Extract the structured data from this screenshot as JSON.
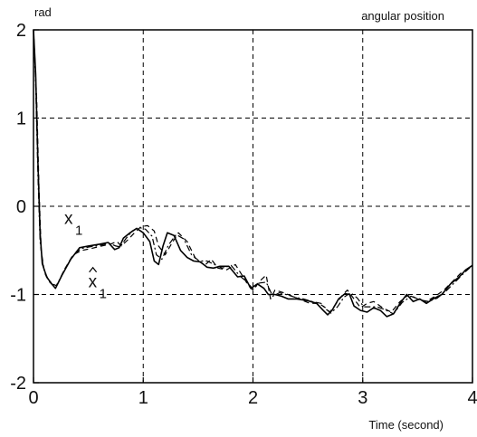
{
  "chart_data": {
    "type": "line",
    "title": "angular position",
    "ylabel": "rad",
    "xlabel": "Time (second)",
    "xlim": [
      0,
      4
    ],
    "ylim": [
      -2,
      2
    ],
    "xticks": [
      0,
      1,
      2,
      3,
      4
    ],
    "yticks": [
      -2,
      -1,
      0,
      1,
      2
    ],
    "grid": true,
    "grid_style": "dashed",
    "annotations": [
      {
        "text": "x",
        "subscript": "1",
        "hat": false,
        "x": 0.28,
        "y": -0.2
      },
      {
        "text": "x",
        "subscript": "1",
        "hat": true,
        "x": 0.5,
        "y": -0.92
      }
    ],
    "series": [
      {
        "style": "solid",
        "x": [
          0.0,
          0.02,
          0.04,
          0.06,
          0.08,
          0.12,
          0.16,
          0.2,
          0.26,
          0.34,
          0.42,
          0.5,
          0.6,
          0.68,
          0.74,
          0.78,
          0.82,
          0.88,
          0.94,
          1.0,
          1.06,
          1.1,
          1.14,
          1.18,
          1.22,
          1.28,
          1.34,
          1.4,
          1.46,
          1.52,
          1.58,
          1.64,
          1.7,
          1.78,
          1.86,
          1.92,
          1.98,
          2.04,
          2.1,
          2.14,
          2.2,
          2.26,
          2.32,
          2.4,
          2.5,
          2.58,
          2.64,
          2.68,
          2.72,
          2.78,
          2.84,
          2.88,
          2.92,
          2.98,
          3.04,
          3.1,
          3.16,
          3.22,
          3.28,
          3.34,
          3.4,
          3.46,
          3.52,
          3.58,
          3.64,
          3.72,
          3.8,
          3.88,
          3.94,
          4.0
        ],
        "y": [
          2.0,
          1.5,
          0.5,
          -0.3,
          -0.65,
          -0.8,
          -0.87,
          -0.93,
          -0.78,
          -0.6,
          -0.47,
          -0.45,
          -0.43,
          -0.41,
          -0.49,
          -0.47,
          -0.36,
          -0.3,
          -0.25,
          -0.3,
          -0.4,
          -0.62,
          -0.66,
          -0.45,
          -0.3,
          -0.33,
          -0.5,
          -0.58,
          -0.62,
          -0.63,
          -0.69,
          -0.7,
          -0.68,
          -0.68,
          -0.8,
          -0.79,
          -0.93,
          -0.88,
          -0.93,
          -1.0,
          -1.0,
          -1.02,
          -1.05,
          -1.05,
          -1.07,
          -1.1,
          -1.18,
          -1.23,
          -1.18,
          -1.05,
          -0.99,
          -1.0,
          -1.13,
          -1.18,
          -1.2,
          -1.15,
          -1.18,
          -1.25,
          -1.22,
          -1.1,
          -1.0,
          -1.08,
          -1.05,
          -1.1,
          -1.05,
          -1.0,
          -0.88,
          -0.8,
          -0.72,
          -0.67
        ]
      },
      {
        "style": "dashed",
        "x": [
          0.0,
          0.03,
          0.05,
          0.07,
          0.1,
          0.14,
          0.18,
          0.22,
          0.28,
          0.36,
          0.44,
          0.52,
          0.62,
          0.7,
          0.76,
          0.8,
          0.86,
          0.92,
          0.98,
          1.04,
          1.1,
          1.14,
          1.2,
          1.26,
          1.32,
          1.4,
          1.48,
          1.56,
          1.62,
          1.68,
          1.76,
          1.84,
          1.9,
          1.96,
          2.0,
          2.06,
          2.12,
          2.16,
          2.2,
          2.28,
          2.36,
          2.44,
          2.52,
          2.6,
          2.66,
          2.7,
          2.76,
          2.82,
          2.86,
          2.92,
          2.98,
          3.04,
          3.1,
          3.18,
          3.26,
          3.34,
          3.42,
          3.5,
          3.58,
          3.66,
          3.74,
          3.82,
          3.9,
          4.0
        ],
        "y": [
          2.0,
          1.2,
          0.2,
          -0.5,
          -0.75,
          -0.85,
          -0.9,
          -0.88,
          -0.72,
          -0.55,
          -0.5,
          -0.48,
          -0.45,
          -0.43,
          -0.4,
          -0.45,
          -0.38,
          -0.3,
          -0.23,
          -0.22,
          -0.28,
          -0.45,
          -0.55,
          -0.42,
          -0.3,
          -0.4,
          -0.6,
          -0.67,
          -0.6,
          -0.7,
          -0.72,
          -0.66,
          -0.78,
          -0.9,
          -0.95,
          -0.85,
          -0.78,
          -1.05,
          -0.95,
          -0.98,
          -1.02,
          -1.06,
          -1.1,
          -1.1,
          -1.15,
          -1.2,
          -1.1,
          -1.0,
          -0.95,
          -1.05,
          -1.15,
          -1.1,
          -1.08,
          -1.15,
          -1.2,
          -1.08,
          -1.0,
          -1.05,
          -1.08,
          -1.02,
          -0.95,
          -0.85,
          -0.75,
          -0.68
        ]
      },
      {
        "style": "dashdot",
        "x": [
          0.0,
          0.02,
          0.04,
          0.06,
          0.09,
          0.13,
          0.17,
          0.21,
          0.27,
          0.35,
          0.43,
          0.51,
          0.61,
          0.69,
          0.75,
          0.79,
          0.84,
          0.9,
          0.96,
          1.02,
          1.08,
          1.12,
          1.17,
          1.23,
          1.3,
          1.37,
          1.44,
          1.51,
          1.58,
          1.65,
          1.72,
          1.8,
          1.88,
          1.94,
          2.0,
          2.06,
          2.12,
          2.18,
          2.24,
          2.3,
          2.38,
          2.46,
          2.54,
          2.62,
          2.67,
          2.71,
          2.77,
          2.83,
          2.89,
          2.95,
          3.01,
          3.07,
          3.13,
          3.2,
          3.28,
          3.36,
          3.44,
          3.52,
          3.6,
          3.68,
          3.76,
          3.84,
          3.92,
          4.0
        ],
        "y": [
          2.0,
          1.4,
          0.35,
          -0.4,
          -0.7,
          -0.82,
          -0.88,
          -0.9,
          -0.75,
          -0.58,
          -0.48,
          -0.46,
          -0.44,
          -0.42,
          -0.45,
          -0.46,
          -0.37,
          -0.28,
          -0.24,
          -0.26,
          -0.34,
          -0.55,
          -0.6,
          -0.44,
          -0.32,
          -0.37,
          -0.55,
          -0.62,
          -0.62,
          -0.66,
          -0.7,
          -0.67,
          -0.79,
          -0.85,
          -0.94,
          -0.87,
          -0.86,
          -1.02,
          -0.98,
          -1.0,
          -1.03,
          -1.05,
          -1.08,
          -1.1,
          -1.17,
          -1.21,
          -1.14,
          -1.03,
          -0.98,
          -1.04,
          -1.14,
          -1.14,
          -1.14,
          -1.17,
          -1.22,
          -1.09,
          -1.02,
          -1.06,
          -1.08,
          -1.04,
          -0.96,
          -0.86,
          -0.76,
          -0.67
        ]
      }
    ]
  }
}
